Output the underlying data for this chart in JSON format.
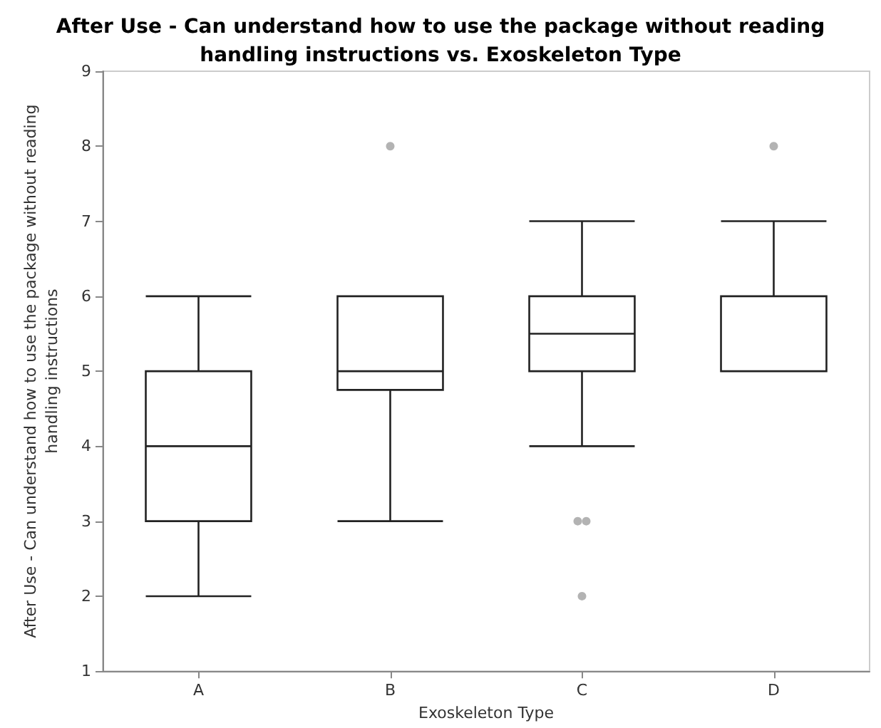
{
  "chart_data": {
    "type": "box",
    "title": "After Use - Can understand how to use the package without reading\nhandling instructions vs. Exoskeleton Type",
    "xlabel": "Exoskeleton Type",
    "ylabel": "After Use - Can understand how to use the package without reading\nhandling instructions",
    "categories": [
      "A",
      "B",
      "C",
      "D"
    ],
    "boxes": [
      {
        "low": 2,
        "q1": 3,
        "median": 4,
        "q3": 5,
        "high": 6
      },
      {
        "low": 3,
        "q1": 4.75,
        "median": 5,
        "q3": 6,
        "high": 6,
        "outliers": [
          8
        ]
      },
      {
        "low": 4,
        "q1": 5,
        "median": 5.5,
        "q3": 6,
        "high": 7,
        "outliers": [
          3,
          3,
          2
        ]
      },
      {
        "low": 5,
        "q1": 5,
        "median": 5,
        "q3": 6,
        "high": 7,
        "outliers": [
          8
        ]
      }
    ],
    "ylim": [
      1,
      9
    ],
    "yticks": [
      1,
      2,
      3,
      4,
      5,
      6,
      7,
      8,
      9
    ],
    "grid": false
  }
}
